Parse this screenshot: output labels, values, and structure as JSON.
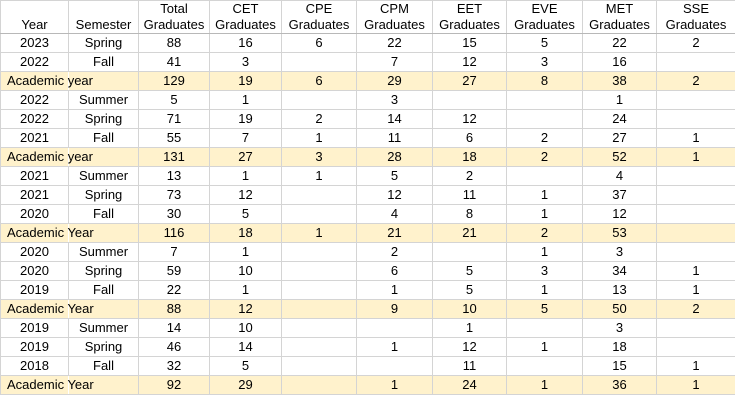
{
  "table": {
    "header": {
      "year": "Year",
      "semester": "Semester",
      "total_top": "Total",
      "total_bottom": "Graduates",
      "programs": [
        {
          "top": "CET",
          "bottom": "Graduates"
        },
        {
          "top": "CPE",
          "bottom": "Graduates"
        },
        {
          "top": "CPM",
          "bottom": "Graduates"
        },
        {
          "top": "EET",
          "bottom": "Graduates"
        },
        {
          "top": "EVE",
          "bottom": "Graduates"
        },
        {
          "top": "MET",
          "bottom": "Graduates"
        },
        {
          "top": "SSE",
          "bottom": "Graduates"
        }
      ]
    },
    "rows": [
      {
        "type": "term",
        "year": "2023",
        "semester": "Spring",
        "total": "88",
        "cet": "16",
        "cpe": "6",
        "cpm": "22",
        "eet": "15",
        "eve": "5",
        "met": "22",
        "sse": "2"
      },
      {
        "type": "term",
        "year": "2022",
        "semester": "Fall",
        "total": "41",
        "cet": "3",
        "cpe": "",
        "cpm": "7",
        "eet": "12",
        "eve": "3",
        "met": "16",
        "sse": ""
      },
      {
        "type": "ay",
        "label": "Academic year",
        "total": "129",
        "cet": "19",
        "cpe": "6",
        "cpm": "29",
        "eet": "27",
        "eve": "8",
        "met": "38",
        "sse": "2"
      },
      {
        "type": "term",
        "year": "2022",
        "semester": "Summer",
        "total": "5",
        "cet": "1",
        "cpe": "",
        "cpm": "3",
        "eet": "",
        "eve": "",
        "met": "1",
        "sse": ""
      },
      {
        "type": "term",
        "year": "2022",
        "semester": "Spring",
        "total": "71",
        "cet": "19",
        "cpe": "2",
        "cpm": "14",
        "eet": "12",
        "eve": "",
        "met": "24",
        "sse": ""
      },
      {
        "type": "term",
        "year": "2021",
        "semester": "Fall",
        "total": "55",
        "cet": "7",
        "cpe": "1",
        "cpm": "11",
        "eet": "6",
        "eve": "2",
        "met": "27",
        "sse": "1"
      },
      {
        "type": "ay",
        "label": "Academic year",
        "total": "131",
        "cet": "27",
        "cpe": "3",
        "cpm": "28",
        "eet": "18",
        "eve": "2",
        "met": "52",
        "sse": "1"
      },
      {
        "type": "term",
        "year": "2021",
        "semester": "Summer",
        "total": "13",
        "cet": "1",
        "cpe": "1",
        "cpm": "5",
        "eet": "2",
        "eve": "",
        "met": "4",
        "sse": ""
      },
      {
        "type": "term",
        "year": "2021",
        "semester": "Spring",
        "total": "73",
        "cet": "12",
        "cpe": "",
        "cpm": "12",
        "eet": "11",
        "eve": "1",
        "met": "37",
        "sse": ""
      },
      {
        "type": "term",
        "year": "2020",
        "semester": "Fall",
        "total": "30",
        "cet": "5",
        "cpe": "",
        "cpm": "4",
        "eet": "8",
        "eve": "1",
        "met": "12",
        "sse": ""
      },
      {
        "type": "ay",
        "label": "Academic Year",
        "total": "116",
        "cet": "18",
        "cpe": "1",
        "cpm": "21",
        "eet": "21",
        "eve": "2",
        "met": "53",
        "sse": ""
      },
      {
        "type": "term",
        "year": "2020",
        "semester": "Summer",
        "total": "7",
        "cet": "1",
        "cpe": "",
        "cpm": "2",
        "eet": "",
        "eve": "1",
        "met": "3",
        "sse": ""
      },
      {
        "type": "term",
        "year": "2020",
        "semester": "Spring",
        "total": "59",
        "cet": "10",
        "cpe": "",
        "cpm": "6",
        "eet": "5",
        "eve": "3",
        "met": "34",
        "sse": "1"
      },
      {
        "type": "term",
        "year": "2019",
        "semester": "Fall",
        "total": "22",
        "cet": "1",
        "cpe": "",
        "cpm": "1",
        "eet": "5",
        "eve": "1",
        "met": "13",
        "sse": "1"
      },
      {
        "type": "ay",
        "label": "Academic Year",
        "total": "88",
        "cet": "12",
        "cpe": "",
        "cpm": "9",
        "eet": "10",
        "eve": "5",
        "met": "50",
        "sse": "2"
      },
      {
        "type": "term",
        "year": "2019",
        "semester": "Summer",
        "total": "14",
        "cet": "10",
        "cpe": "",
        "cpm": "",
        "eet": "1",
        "eve": "",
        "met": "3",
        "sse": ""
      },
      {
        "type": "term",
        "year": "2019",
        "semester": "Spring",
        "total": "46",
        "cet": "14",
        "cpe": "",
        "cpm": "1",
        "eet": "12",
        "eve": "1",
        "met": "18",
        "sse": ""
      },
      {
        "type": "term",
        "year": "2018",
        "semester": "Fall",
        "total": "32",
        "cet": "5",
        "cpe": "",
        "cpm": "",
        "eet": "11",
        "eve": "",
        "met": "15",
        "sse": "1"
      },
      {
        "type": "ay",
        "label": "Academic Year",
        "total": "92",
        "cet": "29",
        "cpe": "",
        "cpm": "1",
        "eet": "24",
        "eve": "1",
        "met": "36",
        "sse": "1"
      }
    ]
  },
  "colors": {
    "academic_year_fill": "#fff2cc",
    "gridline": "#d4d4d4"
  }
}
